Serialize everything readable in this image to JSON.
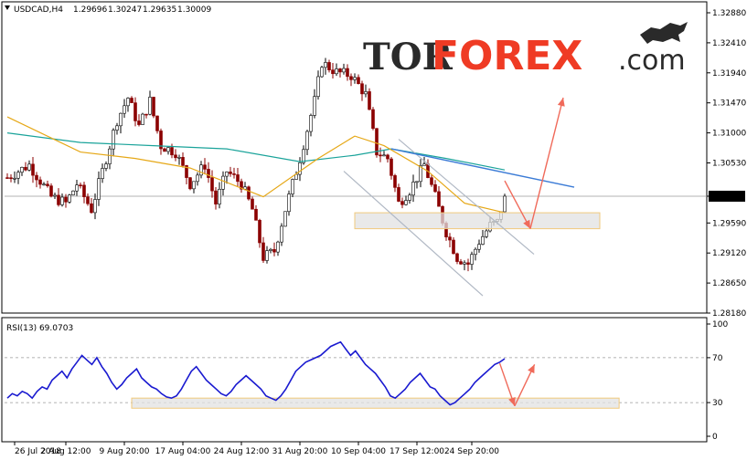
{
  "header": {
    "symbol": "USDCAD,H4",
    "open": "1.29696",
    "high": "1.30247",
    "low": "1.29635",
    "close": "1.30009"
  },
  "logo": {
    "part1": "TOR",
    "part2": "FOREX",
    "part3": ".com"
  },
  "colors": {
    "bull": "#000000",
    "bear": "#8b0000",
    "ma_fast": "#e6a817",
    "ma_slow": "#1aa39a",
    "trend": "#3b7bd6",
    "channel": "#b0b8c4",
    "arrow": "#f06a5a",
    "zone_fill": "#e2e2e2",
    "zone_border": "#f0c97c",
    "rsi": "#1a1ad0"
  },
  "chart_data": [
    {
      "type": "candlestick",
      "title": "USDCAD,H4",
      "ylim": [
        1.2818,
        1.3288
      ],
      "y_ticks": [
        "1.32880",
        "1.32410",
        "1.31940",
        "1.31470",
        "1.31000",
        "1.30530",
        "1.30009",
        "1.29590",
        "1.29120",
        "1.28650",
        "1.28180"
      ],
      "current_price": "1.30009",
      "x_ticks": [
        "26 Jul 2018",
        "2 Aug 12:00",
        "9 Aug 20:00",
        "17 Aug 04:00",
        "24 Aug 12:00",
        "31 Aug 20:00",
        "10 Sep 04:00",
        "17 Sep 12:00",
        "24 Sep 20:00"
      ],
      "close_path": [
        [
          0,
          1.303
        ],
        [
          6,
          1.305
        ],
        [
          12,
          1.3
        ],
        [
          16,
          1.299
        ],
        [
          19,
          1.302
        ],
        [
          23,
          1.298
        ],
        [
          27,
          1.306
        ],
        [
          30,
          1.312
        ],
        [
          33,
          1.3155
        ],
        [
          36,
          1.311
        ],
        [
          39,
          1.315
        ],
        [
          42,
          1.308
        ],
        [
          46,
          1.307
        ],
        [
          50,
          1.302
        ],
        [
          54,
          1.305
        ],
        [
          57,
          1.299
        ],
        [
          60,
          1.304
        ],
        [
          64,
          1.302
        ],
        [
          67,
          1.298
        ],
        [
          70,
          1.2905
        ],
        [
          73,
          1.2915
        ],
        [
          76,
          1.298
        ],
        [
          80,
          1.306
        ],
        [
          84,
          1.315
        ],
        [
          86,
          1.321
        ],
        [
          90,
          1.3195
        ],
        [
          94,
          1.319
        ],
        [
          98,
          1.316
        ],
        [
          101,
          1.307
        ],
        [
          104,
          1.306
        ],
        [
          107,
          1.299
        ],
        [
          110,
          1.301
        ],
        [
          114,
          1.305
        ],
        [
          117,
          1.3
        ],
        [
          120,
          1.2945
        ],
        [
          123,
          1.2905
        ],
        [
          126,
          1.2895
        ],
        [
          129,
          1.293
        ],
        [
          132,
          1.2955
        ],
        [
          134,
          1.296
        ],
        [
          136,
          1.3001
        ]
      ],
      "ma_fast": [
        [
          0,
          1.3125
        ],
        [
          20,
          1.307
        ],
        [
          35,
          1.306
        ],
        [
          50,
          1.3045
        ],
        [
          70,
          1.3
        ],
        [
          85,
          1.306
        ],
        [
          95,
          1.3095
        ],
        [
          103,
          1.308
        ],
        [
          115,
          1.304
        ],
        [
          125,
          1.299
        ],
        [
          136,
          1.2975
        ]
      ],
      "ma_slow": [
        [
          0,
          1.31
        ],
        [
          20,
          1.3085
        ],
        [
          40,
          1.308
        ],
        [
          60,
          1.3075
        ],
        [
          80,
          1.3055
        ],
        [
          95,
          1.3065
        ],
        [
          105,
          1.3075
        ],
        [
          120,
          1.306
        ],
        [
          136,
          1.3042
        ]
      ],
      "trend_line": [
        [
          105,
          1.3075
        ],
        [
          155,
          1.3015
        ]
      ],
      "channel_upper": [
        [
          107,
          1.309
        ],
        [
          144,
          1.291
        ]
      ],
      "channel_lower": [
        [
          92,
          1.304
        ],
        [
          130,
          1.2845
        ]
      ],
      "zone": {
        "x": [
          95,
          162
        ],
        "y": [
          1.295,
          1.2975
        ]
      },
      "arrows": [
        [
          136,
          1.3025,
          143,
          1.295
        ],
        [
          143,
          1.295,
          152,
          1.3155
        ]
      ]
    },
    {
      "type": "line",
      "title": "RSI(13) 69.0703",
      "ylim": [
        0,
        100
      ],
      "y_ticks": [
        "100",
        "70",
        "30",
        "0"
      ],
      "levels": [
        70,
        30
      ],
      "values": [
        34,
        38,
        36,
        40,
        38,
        34,
        40,
        44,
        42,
        50,
        54,
        58,
        52,
        60,
        66,
        72,
        68,
        64,
        70,
        62,
        56,
        48,
        42,
        46,
        52,
        56,
        60,
        52,
        48,
        44,
        42,
        38,
        35,
        34,
        36,
        42,
        50,
        58,
        62,
        56,
        50,
        46,
        42,
        38,
        36,
        40,
        46,
        50,
        54,
        50,
        46,
        42,
        36,
        34,
        32,
        36,
        42,
        50,
        58,
        62,
        66,
        68,
        70,
        72,
        76,
        80,
        82,
        84,
        78,
        72,
        76,
        70,
        64,
        60,
        56,
        50,
        44,
        36,
        34,
        38,
        42,
        48,
        52,
        56,
        50,
        44,
        42,
        36,
        32,
        28,
        30,
        34,
        38,
        42,
        48,
        52,
        56,
        60,
        64,
        66,
        69.07
      ],
      "zone": {
        "x": [
          0.25,
          1.23
        ],
        "y": [
          25,
          34
        ]
      },
      "arrows": [
        [
          0.99,
          65,
          1.02,
          27
        ],
        [
          1.02,
          27,
          1.06,
          64
        ]
      ]
    }
  ]
}
